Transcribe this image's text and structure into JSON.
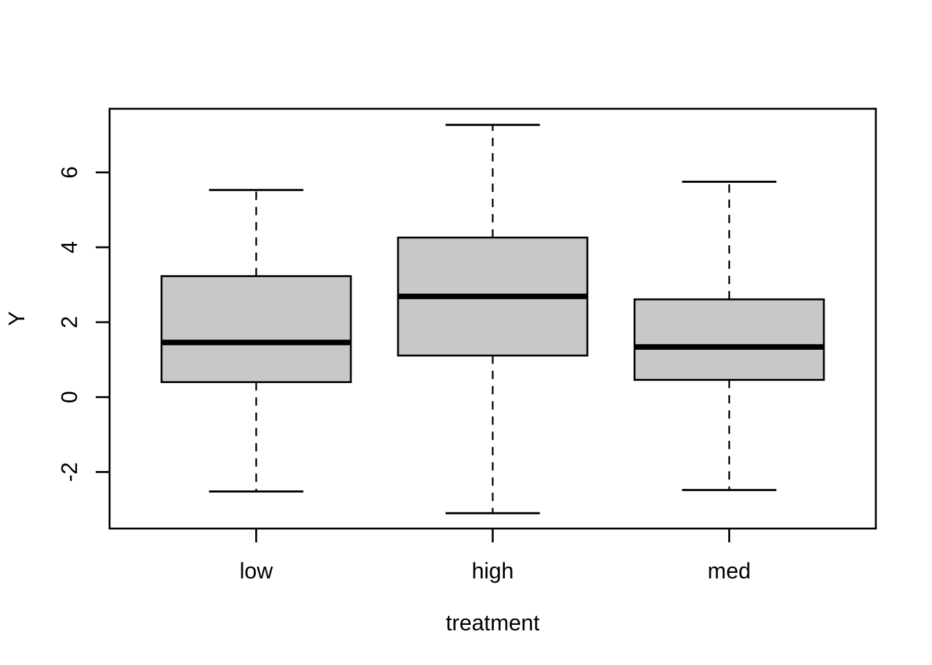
{
  "chart_data": {
    "type": "boxplot",
    "title": "",
    "xlabel": "treatment",
    "ylabel": "Y",
    "categories": [
      "low",
      "high",
      "med"
    ],
    "series": [
      {
        "name": "low",
        "whisker_low": -2.52,
        "q1": 0.4,
        "median": 1.46,
        "q3": 3.23,
        "whisker_high": 5.53,
        "outliers": []
      },
      {
        "name": "high",
        "whisker_low": -3.1,
        "q1": 1.11,
        "median": 2.69,
        "q3": 4.26,
        "whisker_high": 7.27,
        "outliers": []
      },
      {
        "name": "med",
        "whisker_low": -2.48,
        "q1": 0.46,
        "median": 1.34,
        "q3": 2.61,
        "whisker_high": 5.75,
        "outliers": []
      }
    ],
    "y_ticks": [
      -2,
      0,
      2,
      4,
      6
    ],
    "ylim": [
      -3.51,
      7.7
    ],
    "grid": false,
    "legend": "none",
    "box_fill": "#C8C8C8",
    "line_color": "#000000",
    "background": "#FFFFFF"
  }
}
